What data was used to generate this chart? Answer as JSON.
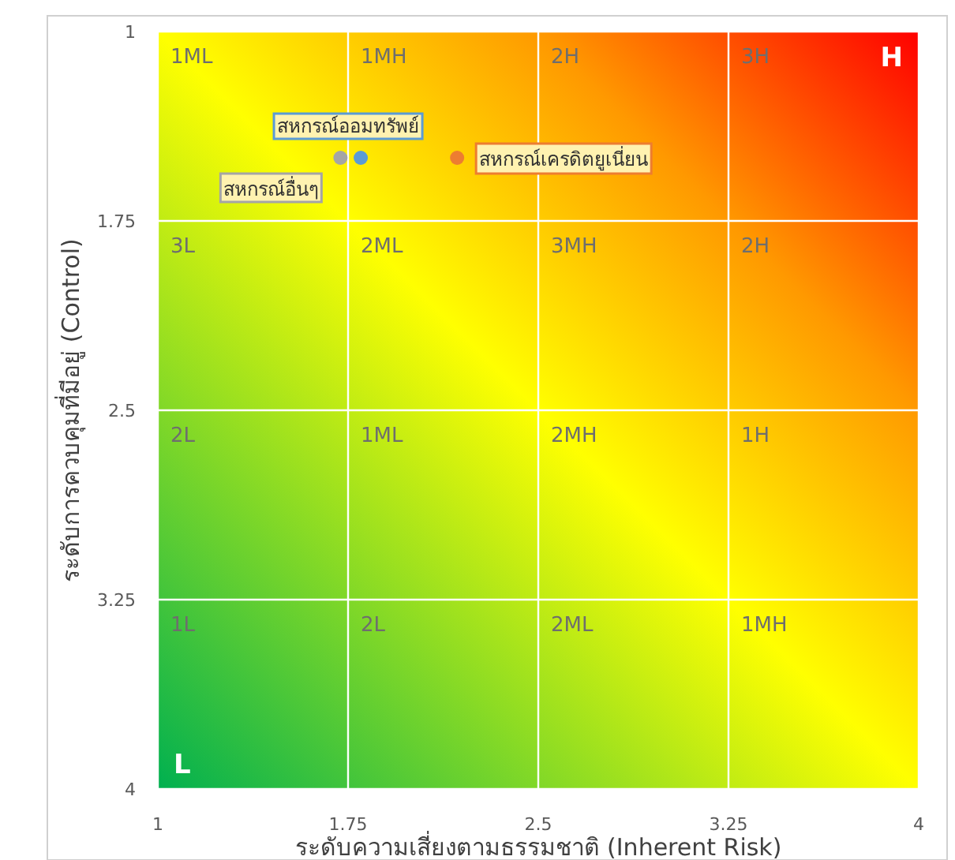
{
  "chart_data": {
    "type": "scatter",
    "xlabel": "ระดับความเสี่ยงตามธรรมชาติ (Inherent Risk)",
    "ylabel": "ระดับการควบคุมที่มีอยู่ (Control)",
    "xlim": [
      1,
      4
    ],
    "ylim": [
      4,
      1
    ],
    "xticks": [
      1,
      1.75,
      2.5,
      3.25,
      4
    ],
    "yticks": [
      1,
      1.75,
      2.5,
      3.25,
      4
    ],
    "grid": true,
    "marker": "circle",
    "series": [
      {
        "name": "สหกรณ์เครดิตยูเนี่ยน",
        "color": "#ed7d31",
        "x": [
          2.18
        ],
        "values": [
          1.5
        ]
      },
      {
        "name": "สหกรณ์ออมทรัพย์",
        "color": "#5b9bd5",
        "x": [
          1.8
        ],
        "values": [
          1.5
        ]
      },
      {
        "name": "สหกรณ์อื่นๆ",
        "color": "#a5a5a5",
        "x": [
          1.72
        ],
        "values": [
          1.5
        ]
      }
    ],
    "annotations": [
      "1ML",
      "1MH",
      "2H",
      "3H",
      "3L",
      "2ML",
      "3MH",
      "2H",
      "2L",
      "1ML",
      "2MH",
      "1H",
      "1L",
      "2L",
      "2ML",
      "1MH",
      "H",
      "L"
    ]
  }
}
